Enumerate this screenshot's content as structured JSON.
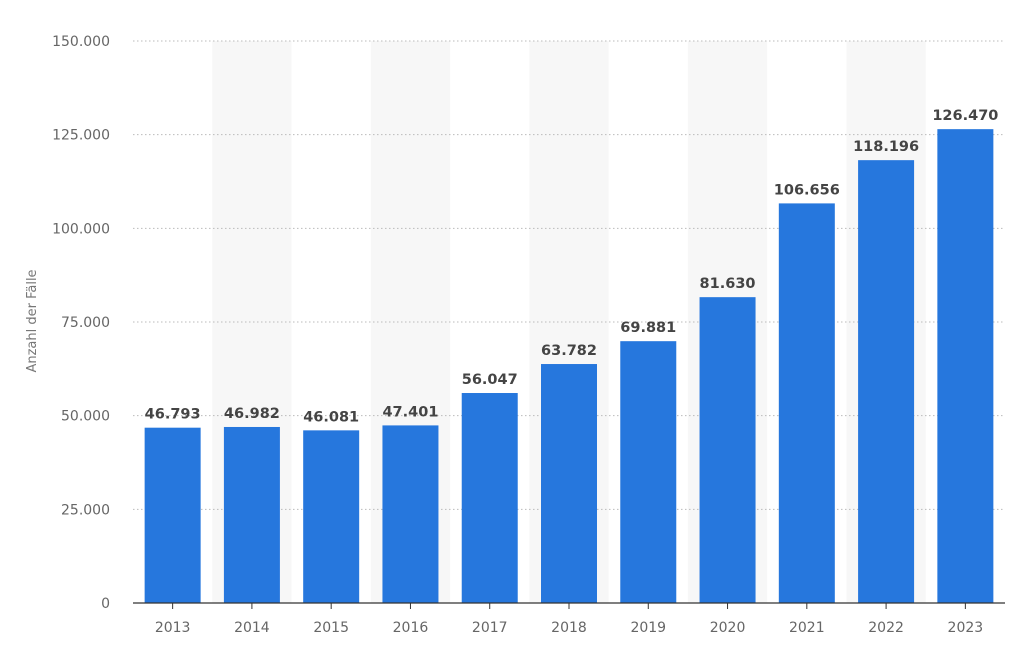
{
  "chart_data": {
    "type": "bar",
    "categories": [
      "2013",
      "2014",
      "2015",
      "2016",
      "2017",
      "2018",
      "2019",
      "2020",
      "2021",
      "2022",
      "2023"
    ],
    "values": [
      46793,
      46982,
      46081,
      47401,
      56047,
      63782,
      69881,
      81630,
      106656,
      118196,
      126470
    ],
    "value_labels": [
      "46.793",
      "46.982",
      "46.081",
      "47.401",
      "56.047",
      "63.782",
      "69.881",
      "81.630",
      "106.656",
      "118.196",
      "126.470"
    ],
    "ylabel": "Anzahl der Fälle",
    "xlabel": "",
    "ylim": [
      0,
      150000
    ],
    "y_ticks": [
      0,
      25000,
      50000,
      75000,
      100000,
      125000,
      150000
    ],
    "y_tick_labels": [
      "0",
      "25.000",
      "50.000",
      "75.000",
      "100.000",
      "125.000",
      "150.000"
    ],
    "grid": "horizontal dotted",
    "alternating_column_bands": true,
    "legend": "none",
    "colors": {
      "bar": "#2677DD",
      "band": "#F7F7F7",
      "grid": "#BBBBBB",
      "axis": "#333333"
    }
  }
}
